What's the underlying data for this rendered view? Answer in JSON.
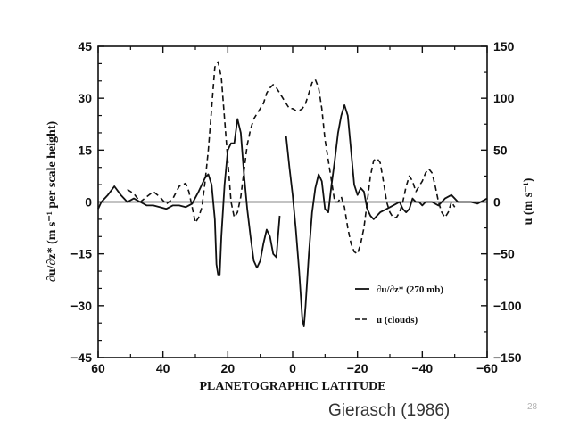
{
  "chart_data": {
    "type": "line",
    "title": "",
    "xlabel": "PLANETOGRAPHIC LATITUDE",
    "ylabel_left": "∂u/∂z* (m s⁻¹ per scale height)",
    "ylabel_right": "u (m s⁻¹)",
    "x_axis_reversed": true,
    "xlim": [
      60,
      -60
    ],
    "ylim_left": [
      -45,
      45
    ],
    "ylim_right": [
      -150,
      150
    ],
    "x_ticks": [
      60,
      40,
      20,
      0,
      -20,
      -40,
      -60
    ],
    "x_tick_labels": [
      "60",
      "40",
      "20",
      "0",
      "−20",
      "−40",
      "−60"
    ],
    "y_ticks_left": [
      45,
      30,
      15,
      0,
      -15,
      -30,
      -45
    ],
    "y_tick_labels_left": [
      "45",
      "30",
      "15",
      "0",
      "−15",
      "−30",
      "−45"
    ],
    "y_ticks_right": [
      150,
      100,
      50,
      0,
      -50,
      -100,
      -150
    ],
    "y_tick_labels_right": [
      "150",
      "100",
      "50",
      "0",
      "−50",
      "−100",
      "−150"
    ],
    "grid": false,
    "legend_position": "lower-right",
    "zero_line": true,
    "series": [
      {
        "name": "∂u/∂z* (270 mb)",
        "style": "solid",
        "axis": "left",
        "segments": [
          [
            [
              60,
              -2
            ],
            [
              59,
              0
            ],
            [
              57,
              2
            ],
            [
              55,
              4.5
            ],
            [
              53,
              2
            ],
            [
              51,
              0
            ],
            [
              49,
              1
            ],
            [
              47,
              0
            ],
            [
              45,
              -1
            ],
            [
              43,
              -1
            ],
            [
              41,
              -1.5
            ],
            [
              39,
              -2
            ],
            [
              37,
              -1
            ],
            [
              35,
              -1
            ],
            [
              33,
              -1.5
            ],
            [
              31,
              -0.5
            ],
            [
              29,
              3
            ],
            [
              27,
              7
            ],
            [
              26,
              8
            ],
            [
              25,
              5
            ],
            [
              24,
              -5
            ],
            [
              23.5,
              -18
            ],
            [
              23,
              -21
            ],
            [
              22.5,
              -21
            ],
            [
              22,
              -10
            ],
            [
              21,
              5
            ],
            [
              20,
              15
            ],
            [
              19,
              17
            ],
            [
              18,
              17
            ],
            [
              17,
              24
            ],
            [
              16,
              20
            ],
            [
              15,
              8
            ],
            [
              14,
              -2
            ],
            [
              13,
              -10
            ],
            [
              12,
              -17
            ],
            [
              11,
              -19
            ],
            [
              10,
              -17
            ],
            [
              9,
              -12
            ],
            [
              8,
              -8
            ],
            [
              7,
              -10
            ],
            [
              6,
              -15
            ],
            [
              5,
              -16
            ],
            [
              4.5,
              -10
            ],
            [
              4,
              -4
            ]
          ],
          [
            [
              2,
              19
            ],
            [
              1,
              10
            ],
            [
              0,
              2
            ],
            [
              -1,
              -8
            ],
            [
              -2,
              -20
            ],
            [
              -3,
              -34
            ],
            [
              -3.5,
              -36
            ],
            [
              -4,
              -30
            ],
            [
              -5,
              -15
            ],
            [
              -6,
              -3
            ],
            [
              -7,
              4
            ],
            [
              -8,
              8
            ],
            [
              -9,
              6
            ],
            [
              -10,
              -2
            ],
            [
              -11,
              -3
            ],
            [
              -12,
              5
            ],
            [
              -13,
              12
            ],
            [
              -14,
              20
            ],
            [
              -15,
              25
            ],
            [
              -16,
              28
            ],
            [
              -17,
              25
            ],
            [
              -18,
              15
            ],
            [
              -19,
              5
            ],
            [
              -20,
              2
            ],
            [
              -21,
              4
            ],
            [
              -22,
              3
            ],
            [
              -23,
              -2
            ],
            [
              -24,
              -4
            ],
            [
              -25,
              -5
            ],
            [
              -27,
              -3
            ],
            [
              -29,
              -2
            ],
            [
              -31,
              -1
            ],
            [
              -33,
              0
            ],
            [
              -34,
              -2
            ],
            [
              -35,
              -3
            ],
            [
              -36,
              -2
            ],
            [
              -37,
              1
            ],
            [
              -38,
              0
            ],
            [
              -39,
              0
            ],
            [
              -40,
              -1
            ],
            [
              -41,
              0
            ],
            [
              -43,
              0
            ],
            [
              -45,
              -1
            ],
            [
              -47,
              1
            ],
            [
              -49,
              2
            ],
            [
              -51,
              0
            ],
            [
              -53,
              0
            ],
            [
              -55,
              0
            ],
            [
              -57,
              -0.5
            ],
            [
              -60,
              1
            ]
          ]
        ]
      },
      {
        "name": "u (clouds)",
        "style": "dashed",
        "axis": "right",
        "segments": [
          [
            [
              51,
              12
            ],
            [
              49,
              8
            ],
            [
              47,
              0
            ],
            [
              45,
              5
            ],
            [
              43,
              10
            ],
            [
              41,
              5
            ],
            [
              39,
              -2
            ],
            [
              37,
              3
            ],
            [
              35,
              15
            ],
            [
              33,
              18
            ],
            [
              32,
              10
            ],
            [
              31,
              -5
            ],
            [
              30,
              -20
            ],
            [
              29,
              -15
            ],
            [
              28,
              -5
            ],
            [
              27,
              20
            ],
            [
              26,
              50
            ],
            [
              25,
              90
            ],
            [
              24,
              130
            ],
            [
              23,
              135
            ],
            [
              22,
              120
            ],
            [
              21,
              80
            ],
            [
              20,
              40
            ],
            [
              19,
              0
            ],
            [
              18,
              -15
            ],
            [
              17,
              -10
            ],
            [
              16,
              5
            ],
            [
              15,
              30
            ],
            [
              14,
              55
            ],
            [
              13,
              70
            ],
            [
              12,
              80
            ],
            [
              11,
              85
            ],
            [
              10,
              90
            ],
            [
              9,
              95
            ],
            [
              8,
              105
            ],
            [
              7,
              110
            ],
            [
              6,
              113
            ],
            [
              5,
              110
            ],
            [
              4,
              105
            ],
            [
              3,
              100
            ],
            [
              2,
              95
            ],
            [
              1,
              90
            ],
            [
              0,
              90
            ],
            [
              -1,
              88
            ],
            [
              -2,
              88
            ],
            [
              -3,
              90
            ],
            [
              -4,
              95
            ],
            [
              -5,
              105
            ],
            [
              -6,
              115
            ],
            [
              -7,
              118
            ],
            [
              -8,
              110
            ],
            [
              -9,
              90
            ],
            [
              -10,
              60
            ],
            [
              -11,
              40
            ],
            [
              -12,
              20
            ],
            [
              -13,
              0
            ],
            [
              -14,
              0
            ],
            [
              -15,
              5
            ],
            [
              -16,
              -5
            ],
            [
              -17,
              -25
            ],
            [
              -18,
              -40
            ],
            [
              -19,
              -48
            ],
            [
              -20,
              -50
            ],
            [
              -21,
              -40
            ],
            [
              -22,
              -25
            ],
            [
              -23,
              0
            ],
            [
              -24,
              25
            ],
            [
              -25,
              40
            ],
            [
              -26,
              42
            ],
            [
              -27,
              38
            ],
            [
              -28,
              20
            ],
            [
              -29,
              0
            ],
            [
              -30,
              -10
            ],
            [
              -31,
              -15
            ],
            [
              -32,
              -15
            ],
            [
              -33,
              -10
            ],
            [
              -34,
              0
            ],
            [
              -35,
              15
            ],
            [
              -36,
              25
            ],
            [
              -37,
              20
            ],
            [
              -38,
              10
            ],
            [
              -39,
              15
            ],
            [
              -40,
              20
            ],
            [
              -41,
              28
            ],
            [
              -42,
              32
            ],
            [
              -43,
              28
            ],
            [
              -44,
              15
            ],
            [
              -45,
              0
            ],
            [
              -46,
              -10
            ],
            [
              -47,
              -15
            ],
            [
              -48,
              -10
            ],
            [
              -49,
              0
            ],
            [
              -50,
              -5
            ]
          ]
        ]
      }
    ]
  },
  "footer": {
    "credit": "Gierasch (1986)",
    "slide_number": "28"
  }
}
